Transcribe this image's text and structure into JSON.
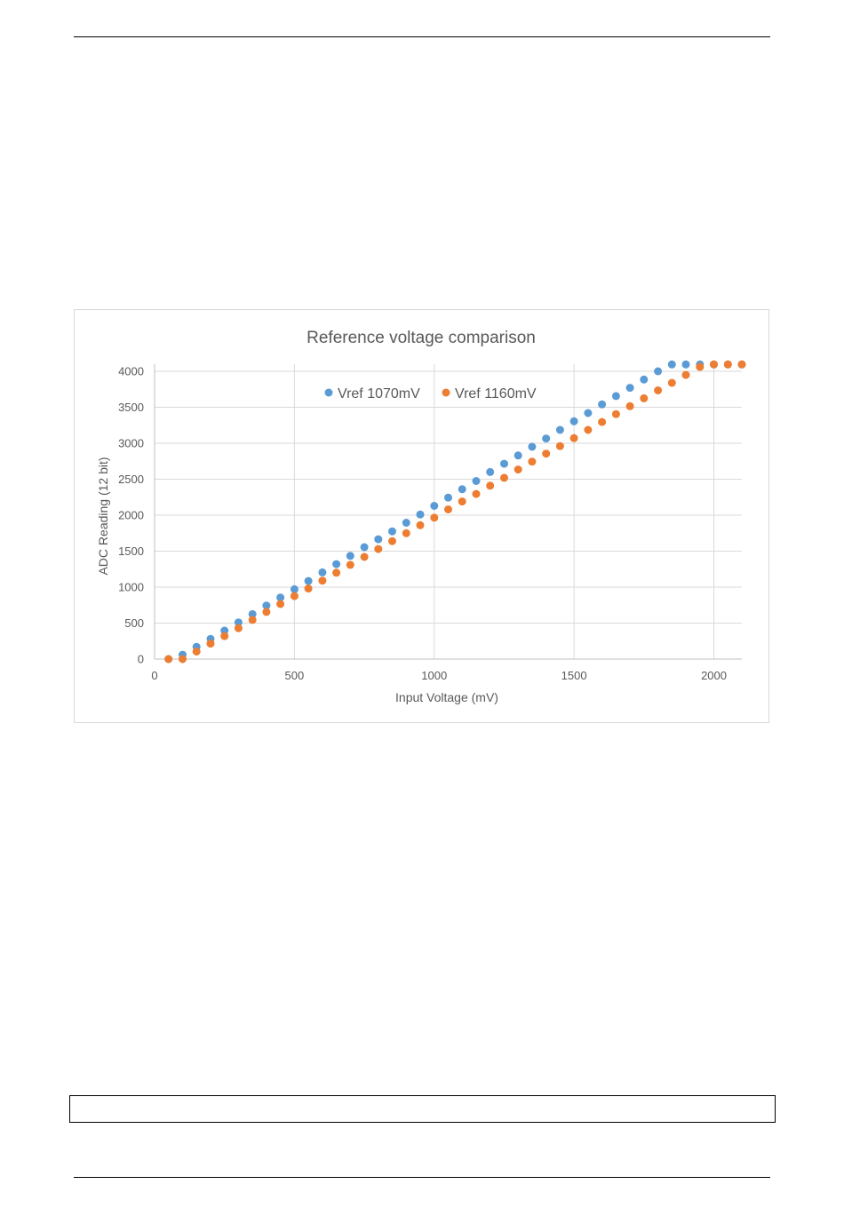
{
  "chart_data": {
    "type": "scatter",
    "title": "Reference voltage comparison",
    "xlabel": "Input Voltage (mV)",
    "ylabel": "ADC Reading (12 bit)",
    "xlim": [
      0,
      2100
    ],
    "ylim": [
      0,
      4000
    ],
    "xticks": [
      0,
      500,
      1000,
      1500,
      2000
    ],
    "yticks": [
      0,
      500,
      1000,
      1500,
      2000,
      2500,
      3000,
      3500,
      4000
    ],
    "grid": true,
    "legend_position": "top",
    "x": [
      50,
      100,
      150,
      200,
      250,
      300,
      350,
      400,
      450,
      500,
      550,
      600,
      650,
      700,
      750,
      800,
      850,
      900,
      950,
      1000,
      1050,
      1100,
      1150,
      1200,
      1250,
      1300,
      1350,
      1400,
      1450,
      1500,
      1550,
      1600,
      1650,
      1700,
      1750,
      1800,
      1850,
      1900,
      1950,
      2000,
      2050,
      2100
    ],
    "series": [
      {
        "name": "Vref 1070mV",
        "color": "#5b9bd5",
        "values": [
          0,
          60,
          170,
          280,
          395,
          510,
          625,
          745,
          855,
          970,
          1085,
          1205,
          1320,
          1435,
          1555,
          1665,
          1775,
          1895,
          2010,
          2130,
          2245,
          2360,
          2475,
          2600,
          2715,
          2830,
          2950,
          3065,
          3185,
          3305,
          3420,
          3540,
          3655,
          3770,
          3885,
          4000,
          4095,
          4095,
          4095,
          4095,
          4095,
          4095
        ]
      },
      {
        "name": "Vref 1160mV",
        "color": "#ed7d31",
        "values": [
          0,
          0,
          105,
          215,
          320,
          430,
          545,
          655,
          765,
          875,
          980,
          1090,
          1200,
          1310,
          1420,
          1530,
          1640,
          1750,
          1860,
          1965,
          2080,
          2190,
          2295,
          2410,
          2520,
          2635,
          2745,
          2855,
          2960,
          3070,
          3185,
          3295,
          3405,
          3515,
          3625,
          3735,
          3840,
          3950,
          4060,
          4095,
          4095,
          4095
        ]
      }
    ]
  }
}
